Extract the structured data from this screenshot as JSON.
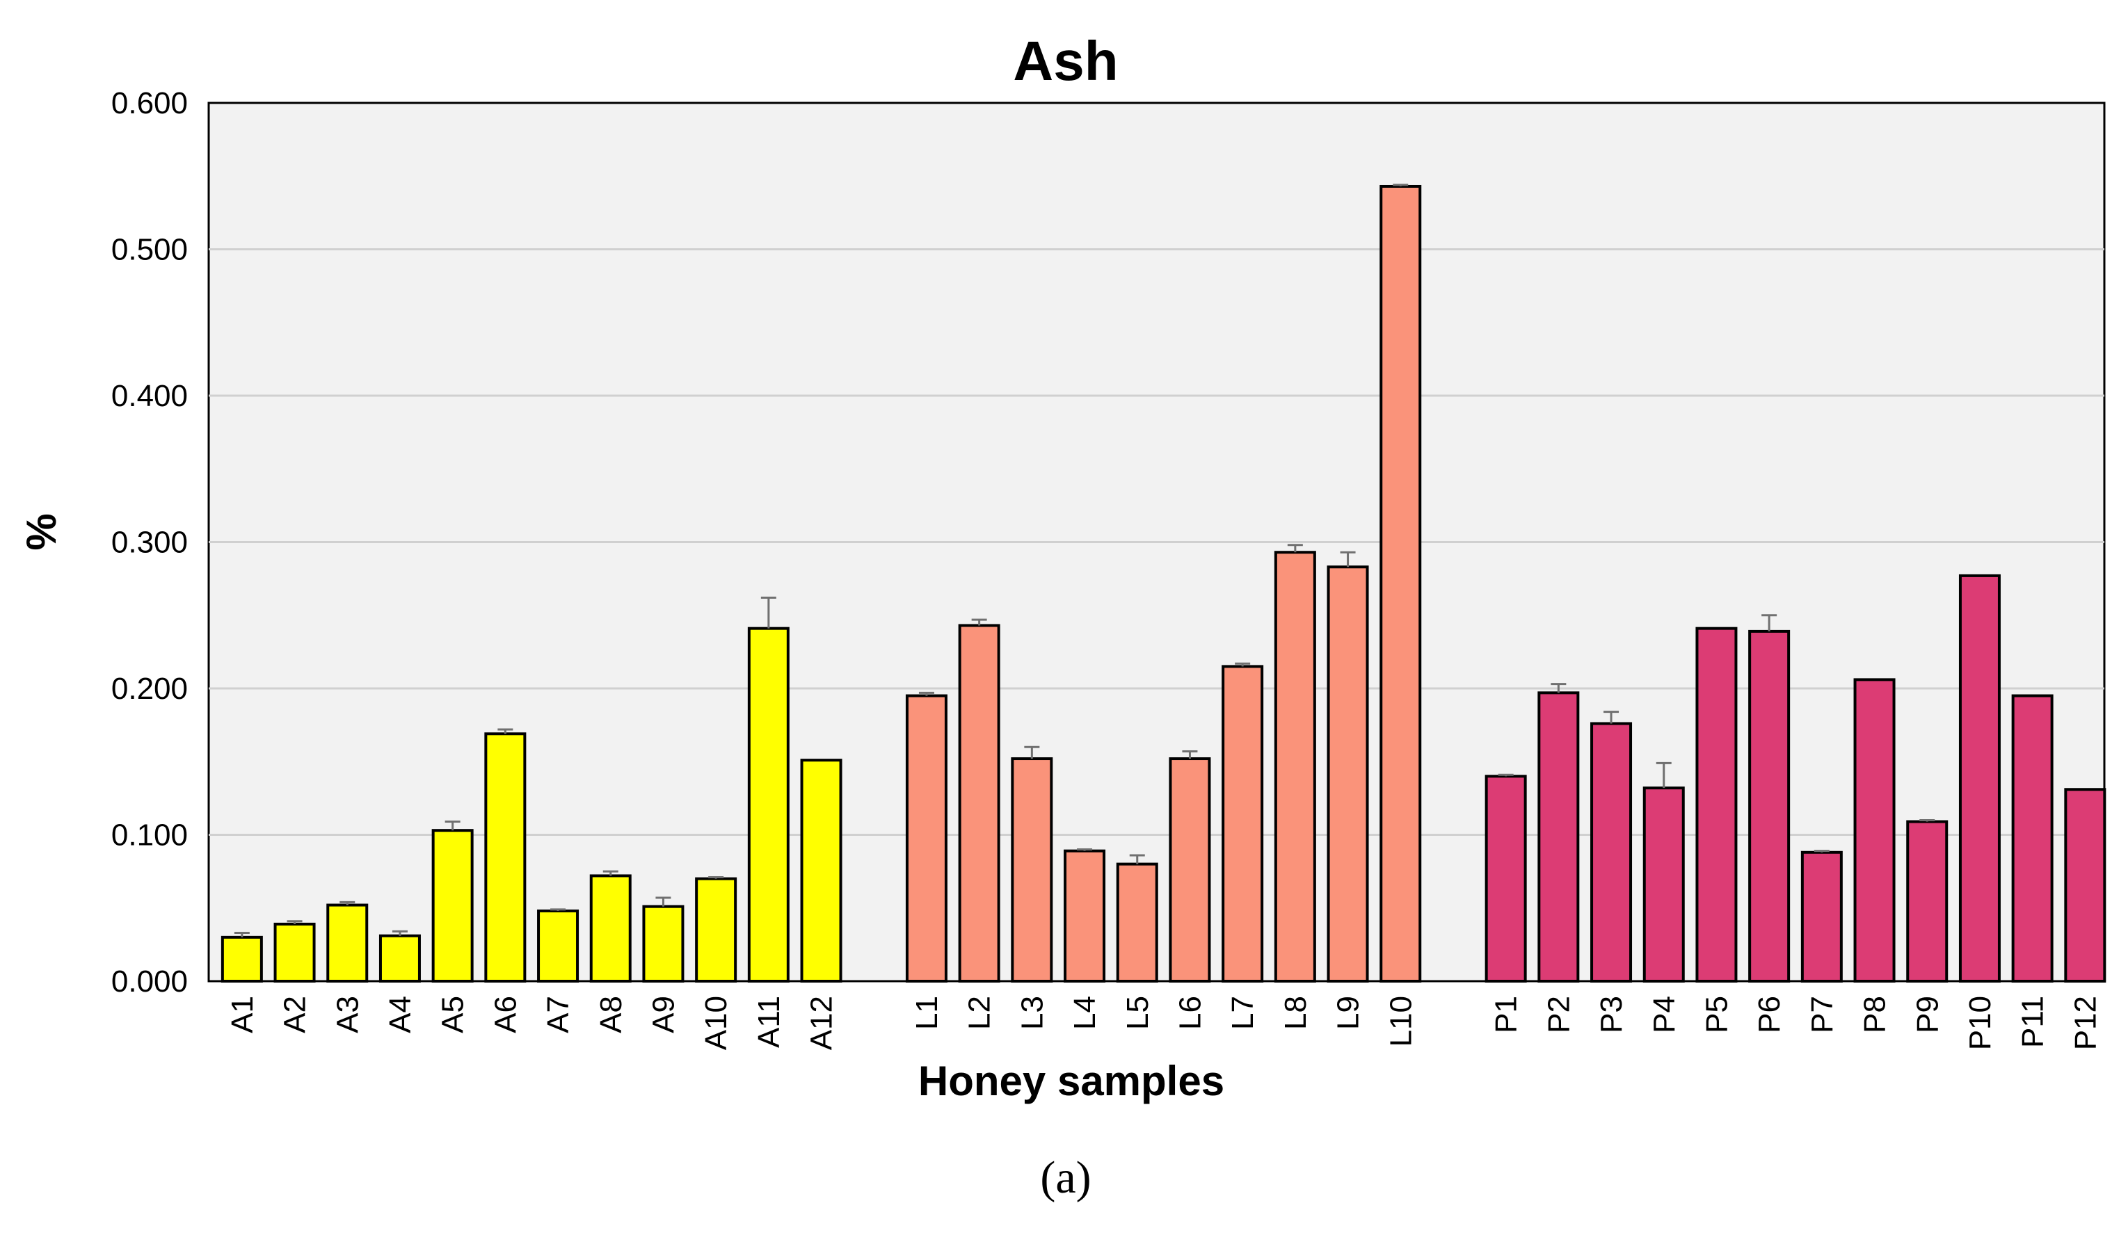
{
  "chart_data": {
    "type": "bar",
    "title": "Ash",
    "xlabel": "Honey samples",
    "ylabel": "%",
    "ylim": [
      0,
      0.6
    ],
    "yticks": [
      "0.000",
      "0.100",
      "0.200",
      "0.300",
      "0.400",
      "0.500",
      "0.600"
    ],
    "grid": true,
    "caption": "(a)",
    "groups": [
      {
        "color": "#ffff00",
        "categories": [
          "A1",
          "A2",
          "A3",
          "A4",
          "A5",
          "A6",
          "A7",
          "A8",
          "A9",
          "A10",
          "A11",
          "A12"
        ],
        "values": [
          0.03,
          0.039,
          0.052,
          0.031,
          0.103,
          0.169,
          0.048,
          0.072,
          0.051,
          0.07,
          0.241,
          0.151
        ],
        "errors": [
          0.003,
          0.002,
          0.002,
          0.003,
          0.006,
          0.003,
          0.001,
          0.003,
          0.006,
          0.001,
          0.021,
          0.0
        ]
      },
      {
        "color": "#fa937a",
        "categories": [
          "L1",
          "L2",
          "L3",
          "L4",
          "L5",
          "L6",
          "L7",
          "L8",
          "L9",
          "L10"
        ],
        "values": [
          0.195,
          0.243,
          0.152,
          0.089,
          0.08,
          0.152,
          0.215,
          0.293,
          0.283,
          0.543
        ],
        "errors": [
          0.002,
          0.004,
          0.008,
          0.001,
          0.006,
          0.005,
          0.002,
          0.005,
          0.01,
          0.001
        ]
      },
      {
        "color": "#dc3c74",
        "categories": [
          "P1",
          "P2",
          "P3",
          "P4",
          "P5",
          "P6",
          "P7",
          "P8",
          "P9",
          "P10",
          "P11",
          "P12"
        ],
        "values": [
          0.14,
          0.197,
          0.176,
          0.132,
          0.241,
          0.239,
          0.088,
          0.206,
          0.109,
          0.277,
          0.195,
          0.131
        ],
        "errors": [
          0.001,
          0.006,
          0.008,
          0.017,
          0.0,
          0.011,
          0.001,
          0.0,
          0.001,
          0.0,
          0.0,
          0.0
        ]
      }
    ]
  }
}
